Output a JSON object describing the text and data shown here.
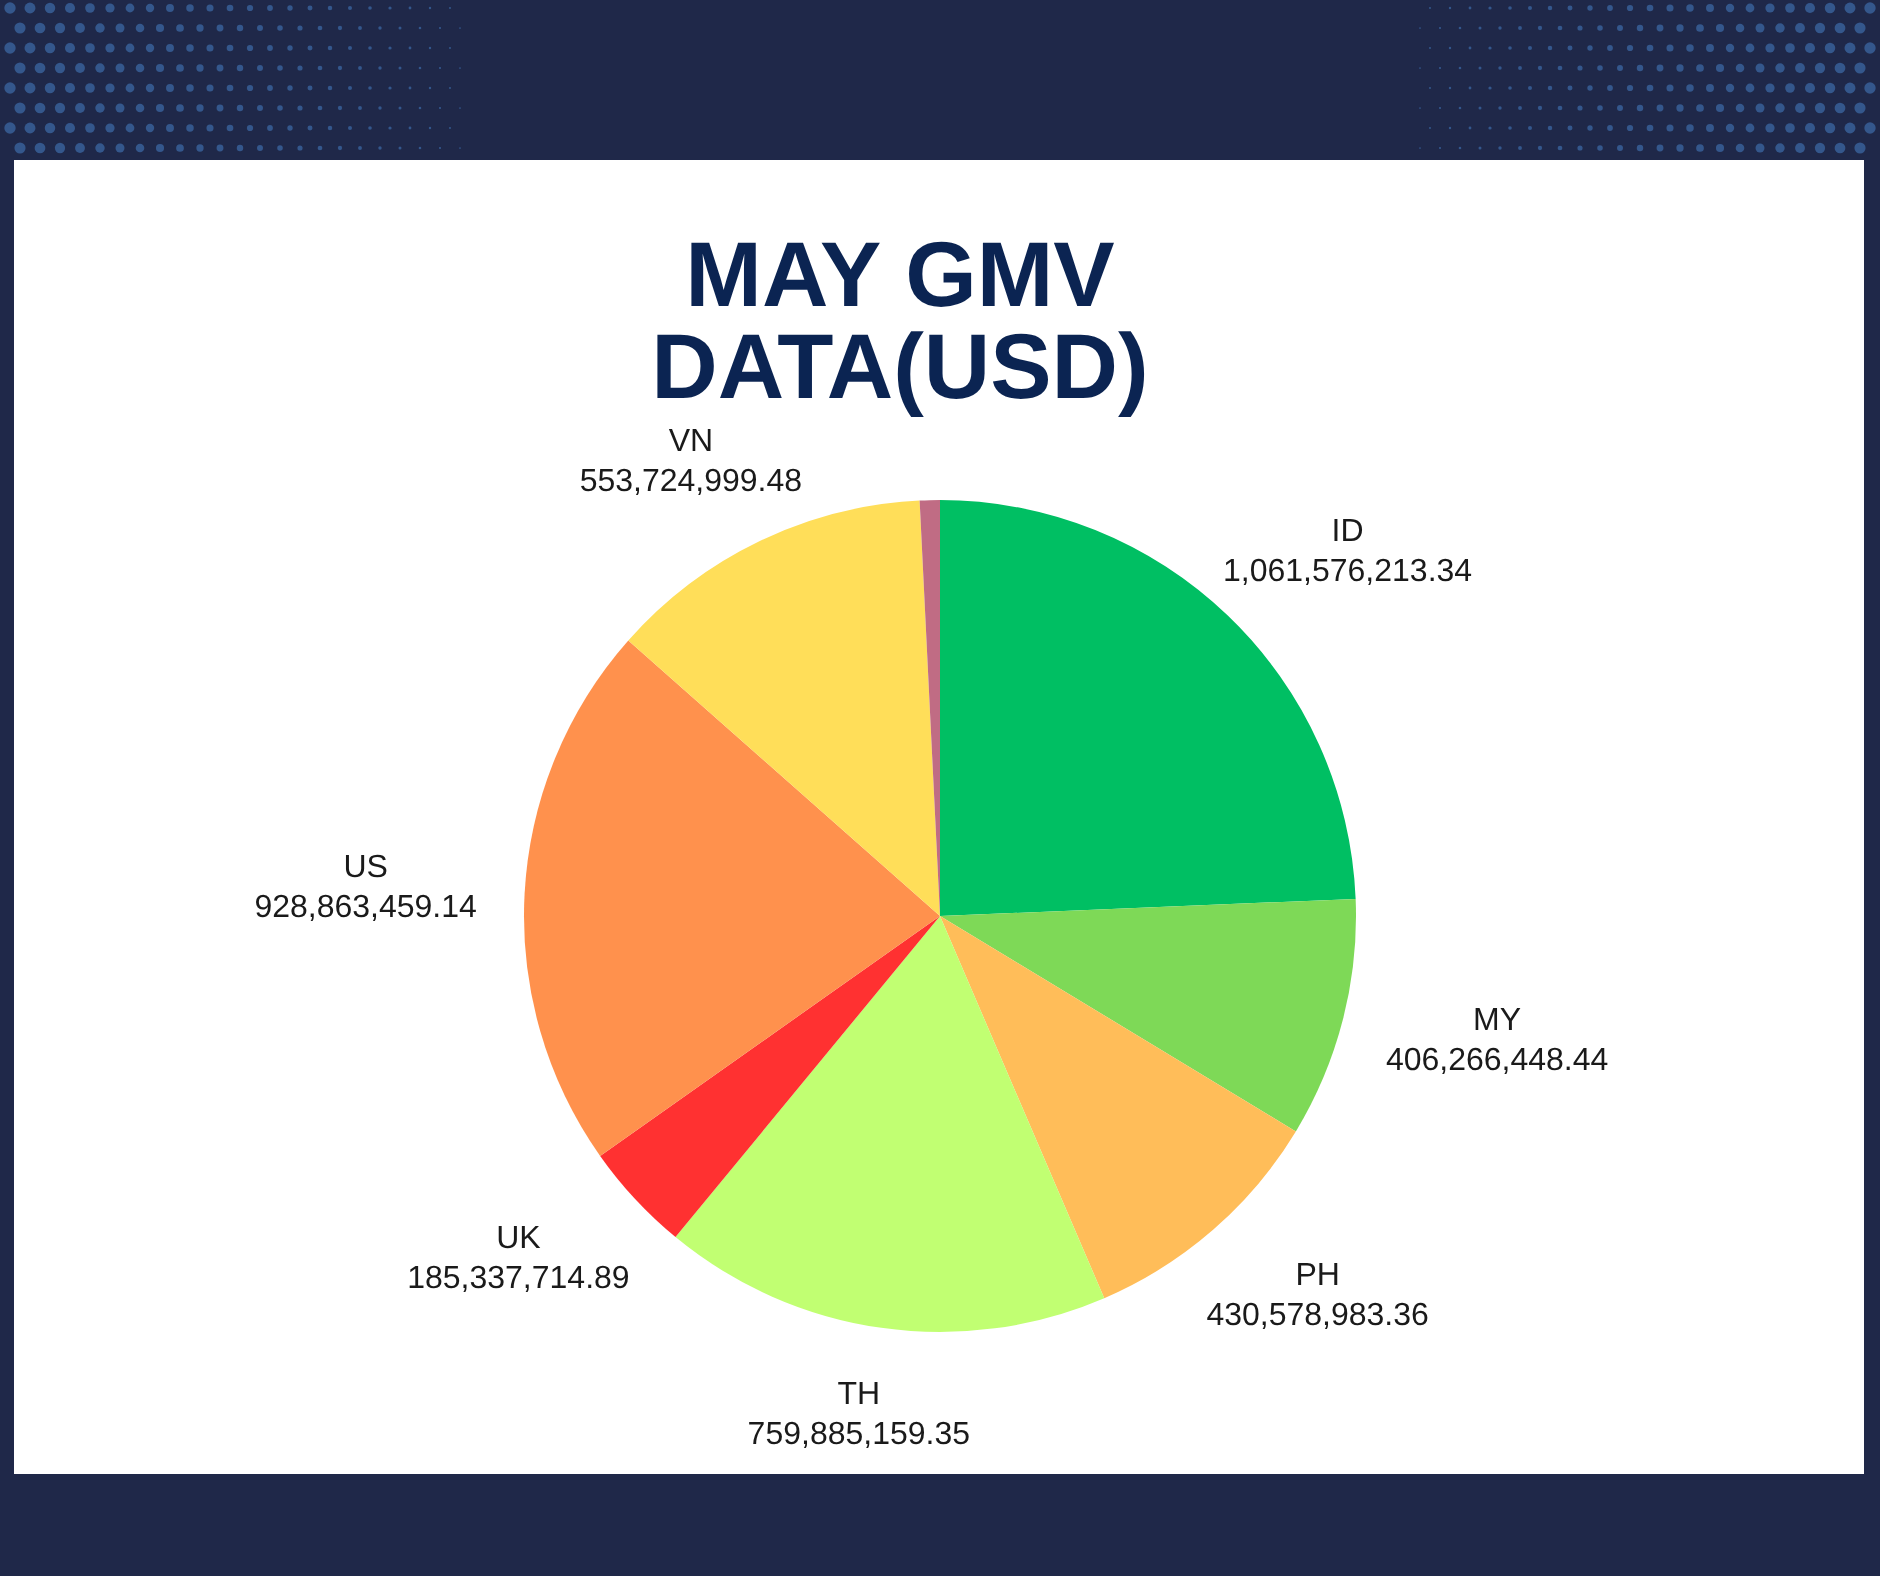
{
  "chart_data": {
    "type": "pie",
    "title": "MAY GMV DATA(USD)",
    "categories": [
      "ID",
      "MY",
      "PH",
      "TH",
      "UK",
      "US",
      "VN",
      null
    ],
    "values": [
      1061576213.34,
      406266448.44,
      430578983.36,
      759885159.35,
      185337714.89,
      928863459.14,
      553724999.48,
      34000000
    ],
    "colors": [
      "#00bf63",
      "#7ed957",
      "#ffbd59",
      "#c1ff72",
      "#ff3131",
      "#ff914d",
      "#ffde59",
      "#c06c84"
    ],
    "value_labels": [
      "1,061,576,213.34",
      "406,266,448.44",
      "430,578,983.36",
      "759,885,159.35",
      "185,337,714.89",
      "928,863,459.14",
      "553,724,999.48",
      null
    ]
  }
}
